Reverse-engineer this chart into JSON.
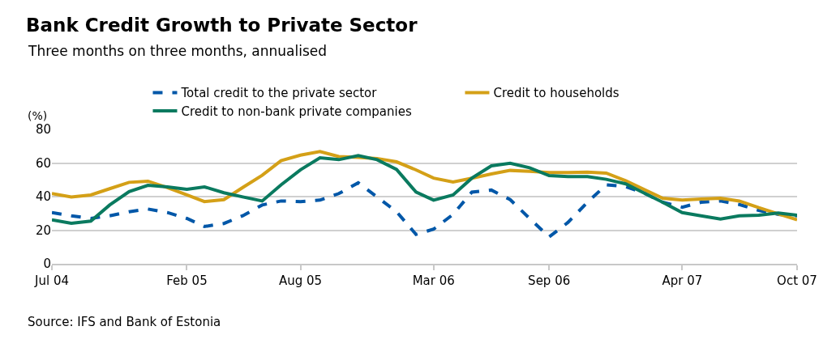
{
  "chart_data": {
    "type": "line",
    "title": "Bank Credit Growth to Private Sector",
    "subtitle": "Three months on three months, annualised",
    "ylabel": "(%)",
    "annotations": [
      "Source: IFS and Bank of Estonia"
    ],
    "x": [
      "2004-07",
      "2004-08",
      "2004-09",
      "2004-10",
      "2004-11",
      "2004-12",
      "2005-01",
      "2005-02",
      "2005-03",
      "2005-04",
      "2005-05",
      "2005-06",
      "2005-07",
      "2005-08",
      "2005-09",
      "2005-10",
      "2005-11",
      "2005-12",
      "2006-01",
      "2006-02",
      "2006-03",
      "2006-04",
      "2006-05",
      "2006-06",
      "2006-07",
      "2006-08",
      "2006-09",
      "2006-10",
      "2006-11",
      "2006-12",
      "2007-01",
      "2007-02",
      "2007-03",
      "2007-04",
      "2007-05",
      "2007-06",
      "2007-07",
      "2007-08",
      "2007-09",
      "2007-10"
    ],
    "series": [
      {
        "name": "Total credit to the private sector",
        "color": "#0057a8",
        "line_style": "dashed",
        "values": [
          30.5,
          28.6,
          27,
          28.6,
          31,
          32.6,
          30.5,
          27,
          22.2,
          24,
          28.6,
          35,
          37.4,
          37,
          37.9,
          41.8,
          48.2,
          39.8,
          31,
          17.5,
          20.6,
          29.4,
          42.7,
          43.9,
          38.2,
          27,
          16,
          24.6,
          36.6,
          47,
          46,
          41.8,
          36.6,
          33.7,
          36.6,
          37.4,
          35.3,
          31.8,
          29.4,
          28.6
        ]
      },
      {
        "name": "Credit to households",
        "color": "#d4a017",
        "line_style": "solid",
        "values": [
          41.8,
          39.8,
          41,
          44.7,
          48.5,
          49.2,
          45.4,
          41,
          37,
          38.2,
          45.4,
          52.7,
          61.4,
          64.7,
          66.8,
          63.9,
          63.4,
          62.7,
          60.7,
          55.9,
          51,
          48.7,
          51,
          53.5,
          55.6,
          55,
          54.3,
          54.3,
          54.6,
          54,
          49.5,
          43.9,
          39,
          37.9,
          38.6,
          39,
          37.4,
          33.4,
          29.7,
          26.2
        ]
      },
      {
        "name": "Credit to non-bank private companies",
        "color": "#0a7a5f",
        "line_style": "solid",
        "values": [
          26.2,
          24.1,
          25.4,
          35,
          43,
          46.7,
          45.8,
          44.3,
          45.8,
          42.3,
          39.8,
          37.4,
          47,
          56,
          63.1,
          62,
          64.4,
          62,
          56.2,
          42.7,
          37.9,
          41,
          51,
          58.3,
          59.9,
          57.2,
          52.5,
          51.9,
          51.9,
          50.3,
          47.6,
          41.8,
          36.6,
          30.5,
          28.6,
          26.7,
          28.6,
          28.9,
          30.2,
          28.9
        ]
      }
    ],
    "xlim": [
      "2004-07",
      "2007-10"
    ],
    "xticks": [
      {
        "value": "2004-07",
        "label": "Jul 04"
      },
      {
        "value": "2005-02",
        "label": "Feb 05"
      },
      {
        "value": "2005-08",
        "label": "Aug 05"
      },
      {
        "value": "2006-03",
        "label": "Mar 06"
      },
      {
        "value": "2006-09",
        "label": "Sep 06"
      },
      {
        "value": "2007-04",
        "label": "Apr 07"
      },
      {
        "value": "2007-10",
        "label": "Oct 07"
      }
    ],
    "ylim": [
      0,
      80
    ],
    "yticks": [
      0,
      20,
      40,
      60,
      80
    ],
    "grid": "y",
    "legend": "top",
    "marker": "none"
  }
}
